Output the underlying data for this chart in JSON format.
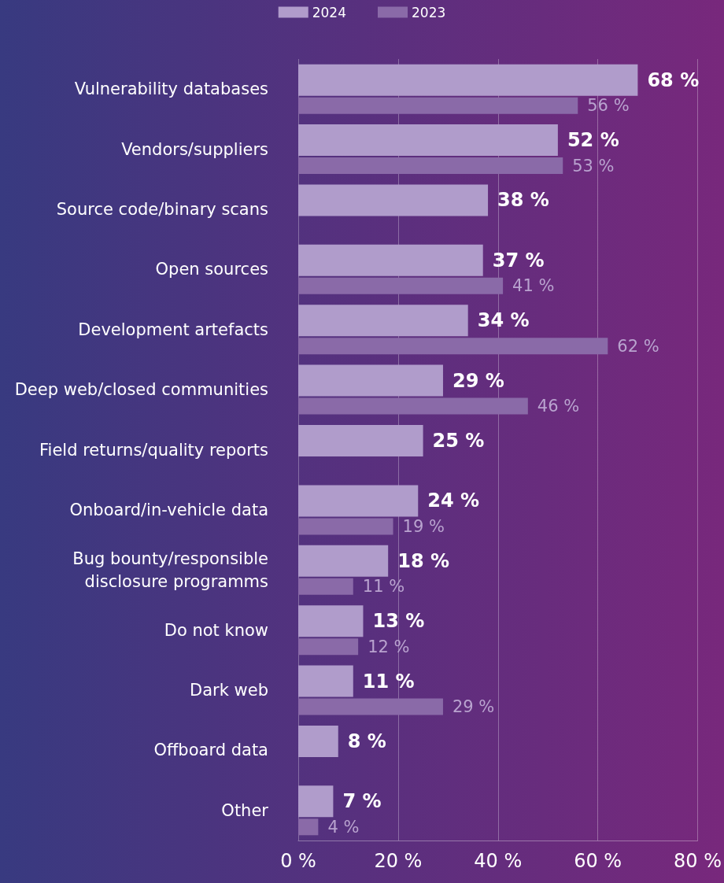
{
  "chart_data": {
    "type": "bar",
    "orientation": "horizontal",
    "categories": [
      "Vulnerability databases",
      "Vendors/suppliers",
      "Source code/binary scans",
      "Open sources",
      "Development artefacts",
      "Deep web/closed communities",
      "Field returns/quality reports",
      "Onboard/in-vehicle data",
      "Bug bounty/responsible\ndisclosure programms",
      "Do not know",
      "Dark web",
      "Offboard data",
      "Other"
    ],
    "series": [
      {
        "name": "2024",
        "color": "#b09ccb",
        "values": [
          68,
          52,
          38,
          37,
          34,
          29,
          25,
          24,
          18,
          13,
          11,
          8,
          7
        ],
        "value_labels": [
          "68 %",
          "52 %",
          "38 %",
          "37 %",
          "34 %",
          "29 %",
          "25 %",
          "24 %",
          "18 %",
          "13 %",
          "11 %",
          "8 %",
          "7 %"
        ]
      },
      {
        "name": "2023",
        "color": "#8a6aa8",
        "values": [
          56,
          53,
          null,
          41,
          62,
          46,
          null,
          19,
          11,
          12,
          29,
          null,
          4
        ],
        "value_labels": [
          "56 %",
          "53 %",
          null,
          "41 %",
          "62 %",
          "46 %",
          null,
          "19 %",
          "11 %",
          "12 %",
          "29 %",
          null,
          "4 %"
        ]
      }
    ],
    "xlim": [
      0,
      80
    ],
    "xticks": [
      {
        "value": 0,
        "label": "0 %"
      },
      {
        "value": 20,
        "label": "20 %"
      },
      {
        "value": 40,
        "label": "40 %"
      },
      {
        "value": 60,
        "label": "60 %"
      },
      {
        "value": 80,
        "label": "80 %"
      }
    ],
    "grid": "x",
    "legend": "top"
  }
}
